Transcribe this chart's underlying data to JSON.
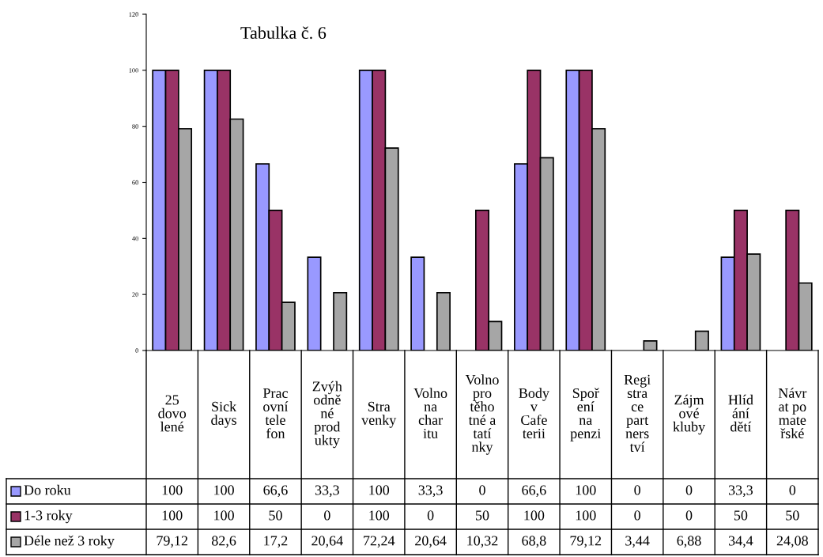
{
  "chart_data": {
    "type": "bar",
    "title": "Tabulka č. 6",
    "categories": [
      "25 dovolené",
      "Sick days",
      "Pracovní telefon",
      "Zvýhodněné produkty",
      "Stravenky",
      "Volno na charitu",
      "Volno pro těhotné a tatínky",
      "Body v Cafeterii",
      "Spoření na penzi",
      "Registrace partnerství",
      "Zájmové kluby",
      "Hlídání dětí",
      "Návrat po mateřské"
    ],
    "series": [
      {
        "name": "Do roku",
        "color": "#9999ff",
        "values": [
          100,
          100,
          66.6,
          33.3,
          100,
          33.3,
          0,
          66.6,
          100,
          0,
          0,
          33.3,
          0
        ],
        "value_labels": [
          "100",
          "100",
          "66,6",
          "33,3",
          "100",
          "33,3",
          "0",
          "66,6",
          "100",
          "0",
          "0",
          "33,3",
          "0"
        ]
      },
      {
        "name": "1-3 roky",
        "color": "#993366",
        "values": [
          100,
          100,
          50,
          0,
          100,
          0,
          50,
          100,
          100,
          0,
          0,
          50,
          50
        ],
        "value_labels": [
          "100",
          "100",
          "50",
          "0",
          "100",
          "0",
          "50",
          "100",
          "100",
          "0",
          "0",
          "50",
          "50"
        ]
      },
      {
        "name": "Déle než 3 roky",
        "color": "#a6a6a6",
        "values": [
          79.12,
          82.6,
          17.2,
          20.64,
          72.24,
          20.64,
          10.32,
          68.8,
          79.12,
          3.44,
          6.88,
          34.4,
          24.08
        ],
        "value_labels": [
          "79,12",
          "82,6",
          "17,2",
          "20,64",
          "72,24",
          "20,64",
          "10,32",
          "68,8",
          "79,12",
          "3,44",
          "6,88",
          "34,4",
          "24,08"
        ]
      }
    ],
    "ylim": [
      0,
      120
    ],
    "yticks": [
      0,
      20,
      40,
      60,
      80,
      100,
      120
    ],
    "grid": false,
    "legend": "bottom"
  }
}
